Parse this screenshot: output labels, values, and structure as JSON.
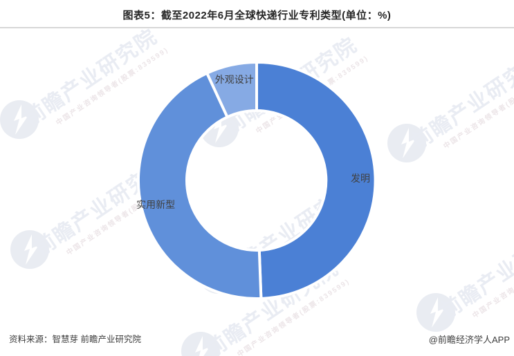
{
  "header": {
    "title": "图表5：截至2022年6月全球快递行业专利类型(单位：%)"
  },
  "chart_data": {
    "type": "pie",
    "subtype": "donut",
    "title": "图表5：截至2022年6月全球快递行业专利类型(单位：%)",
    "unit": "%",
    "order": "clockwise-from-12-oclock",
    "labels": [
      "发明",
      "实用新型",
      "外观设计"
    ],
    "values": [
      49.4,
      43.7,
      6.9
    ],
    "colors": [
      "#4b80d5",
      "#6090da",
      "#86aae4"
    ],
    "label_color": "#404040",
    "border_color": "#ffffff",
    "legend": "none"
  },
  "watermark": {
    "main": "前瞻产业研究院",
    "sub": "中国产业咨询领导者(股票:839599)"
  },
  "footer": {
    "source": "资料来源：智慧芽 前瞻产业研究院",
    "credit": "@前瞻经济学人APP"
  }
}
